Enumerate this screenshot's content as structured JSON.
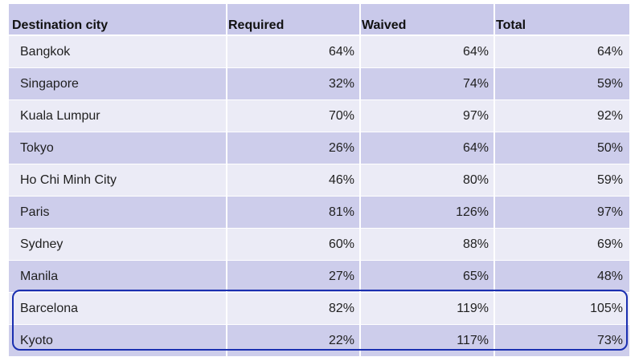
{
  "table": {
    "headers": [
      "Destination city",
      "Required",
      "Waived",
      "Total"
    ],
    "rows": [
      [
        "Bangkok",
        "64%",
        "64%",
        "64%"
      ],
      [
        "Singapore",
        "32%",
        "74%",
        "59%"
      ],
      [
        "Kuala Lumpur",
        "70%",
        "97%",
        "92%"
      ],
      [
        "Tokyo",
        "26%",
        "64%",
        "50%"
      ],
      [
        "Ho Chi Minh City",
        "46%",
        "80%",
        "59%"
      ],
      [
        "Paris",
        "81%",
        "126%",
        "97%"
      ],
      [
        "Sydney",
        "60%",
        "88%",
        "69%"
      ],
      [
        "Manila",
        "27%",
        "65%",
        "48%"
      ],
      [
        "Barcelona",
        "82%",
        "119%",
        "105%"
      ],
      [
        "Kyoto",
        "22%",
        "117%",
        "73%"
      ]
    ],
    "highlighted_rows": [
      "Barcelona",
      "Kyoto"
    ]
  },
  "colors": {
    "header_bg": "#c9c9ea",
    "row_light": "#ebebf6",
    "row_dark": "#cdcdeb",
    "highlight_border": "#1a2fb0"
  }
}
